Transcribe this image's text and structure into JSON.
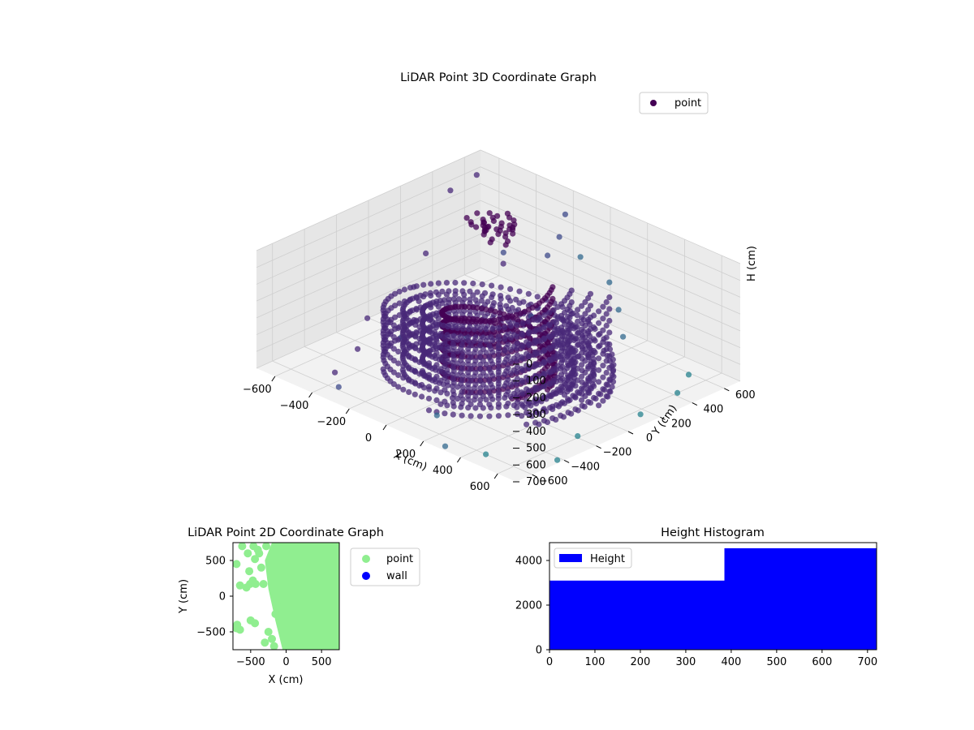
{
  "chart_data": [
    {
      "type": "scatter",
      "title": "LiDAR Point 3D Coordinate Graph",
      "xlabel": "X (cm)",
      "ylabel": "Y (cm)",
      "zlabel": "H (cm)",
      "xlim": [
        -700,
        700
      ],
      "ylim": [
        -700,
        700
      ],
      "zlim": [
        0,
        700
      ],
      "z_inverted": true,
      "xticks": [
        "−600",
        "−400",
        "−200",
        "0",
        "200",
        "400",
        "600"
      ],
      "yticks": [
        "−600",
        "−400",
        "−200",
        "0",
        "200",
        "400",
        "600"
      ],
      "zticks": [
        "0",
        "100",
        "200",
        "300",
        "400",
        "500",
        "600",
        "700"
      ],
      "grid": true,
      "legend": {
        "position": "top-right",
        "entries": [
          {
            "name": "point",
            "color": "#440154"
          }
        ]
      },
      "colormap": "viridis",
      "series": [
        {
          "name": "point",
          "shape": "spiral-ramp",
          "inner_radius": 230,
          "outer_radius": 470,
          "turns": 1.15,
          "height_start": 700,
          "height_end": 120,
          "scattered_points": [
            [
              -690,
              500,
              150
            ],
            [
              -650,
              300,
              420
            ],
            [
              -600,
              560,
              40
            ],
            [
              -560,
              680,
              600
            ],
            [
              -620,
              -100,
              620
            ],
            [
              -500,
              -300,
              660
            ],
            [
              -450,
              -500,
              690
            ],
            [
              -300,
              -650,
              640
            ],
            [
              -200,
              650,
              120
            ],
            [
              -120,
              520,
              160
            ],
            [
              -300,
              380,
              280
            ],
            [
              -80,
              400,
              200
            ],
            [
              80,
              420,
              140
            ],
            [
              -350,
              -200,
              560
            ],
            [
              -150,
              -350,
              600
            ],
            [
              100,
              -500,
              680
            ],
            [
              650,
              650,
              690
            ],
            [
              620,
              400,
              680
            ],
            [
              680,
              100,
              650
            ],
            [
              600,
              -200,
              690
            ],
            [
              450,
              -600,
              700
            ],
            [
              300,
              -680,
              690
            ],
            [
              680,
              -420,
              700
            ],
            [
              560,
              540,
              660
            ],
            [
              -560,
              120,
              500
            ],
            [
              -480,
              60,
              520
            ],
            [
              -420,
              -40,
              560
            ],
            [
              -250,
              90,
              640
            ],
            [
              150,
              520,
              300
            ],
            [
              260,
              450,
              380
            ],
            [
              -30,
              240,
              470
            ],
            [
              120,
              640,
              690
            ]
          ]
        }
      ]
    },
    {
      "type": "scatter",
      "title": "LiDAR Point 2D Coordinate Graph",
      "xlabel": "X (cm)",
      "ylabel": "Y (cm)",
      "xlim": [
        -750,
        750
      ],
      "ylim": [
        -750,
        750
      ],
      "xticks": [
        "−500",
        "0",
        "500"
      ],
      "yticks": [
        "−500",
        "0",
        "500"
      ],
      "legend": {
        "position": "outside-right",
        "entries": [
          {
            "name": "point",
            "color": "#90ee90"
          },
          {
            "name": "wall",
            "color": "#0000ff"
          }
        ]
      },
      "series": [
        {
          "name": "point",
          "color": "#90ee90",
          "dense_region": [
            [
              -200,
              750
            ],
            [
              750,
              750
            ],
            [
              750,
              -750
            ],
            [
              -50,
              -750
            ],
            [
              -150,
              -350
            ],
            [
              -250,
              100
            ],
            [
              -300,
              500
            ]
          ],
          "points": [
            [
              -700,
              450
            ],
            [
              -650,
              150
            ],
            [
              -520,
              350
            ],
            [
              -470,
              220
            ],
            [
              -430,
              170
            ],
            [
              -560,
              120
            ],
            [
              -510,
              170
            ],
            [
              -380,
              600
            ],
            [
              -440,
              520
            ],
            [
              -700,
              -450
            ],
            [
              -650,
              -470
            ],
            [
              -500,
              -340
            ],
            [
              -440,
              -380
            ],
            [
              -400,
              650
            ],
            [
              -460,
              700
            ],
            [
              -200,
              -600
            ],
            [
              -250,
              -500
            ],
            [
              -300,
              -650
            ],
            [
              -150,
              -250
            ],
            [
              -280,
              700
            ],
            [
              -350,
              400
            ],
            [
              -170,
              -700
            ],
            [
              -690,
              -400
            ],
            [
              -120,
              -150
            ],
            [
              -540,
              600
            ],
            [
              -320,
              170
            ],
            [
              -620,
              700
            ]
          ]
        },
        {
          "name": "wall",
          "color": "#0000ff",
          "points": []
        }
      ]
    },
    {
      "type": "bar",
      "title": "Height Histogram",
      "legend": {
        "position": "top-left",
        "entries": [
          {
            "name": "Height",
            "color": "#0000ff"
          }
        ]
      },
      "xlim": [
        0,
        720
      ],
      "ylim": [
        0,
        4800
      ],
      "xticks": [
        "0",
        "100",
        "200",
        "300",
        "400",
        "500",
        "600",
        "700"
      ],
      "yticks": [
        "0",
        "2000",
        "4000"
      ],
      "series": [
        {
          "name": "Height",
          "color": "#0000ff",
          "bins": [
            [
              0,
              385,
              3100
            ],
            [
              385,
              720,
              4550
            ]
          ]
        }
      ]
    }
  ]
}
